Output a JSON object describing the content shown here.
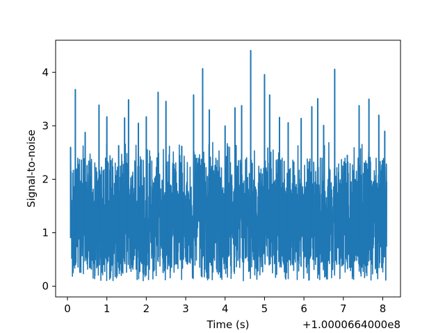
{
  "chart_data": {
    "type": "line",
    "title": "",
    "xlabel": "Time (s)",
    "ylabel": "Signal-to-noise",
    "x_offset_text": "+1.0000664000e8",
    "xlim": [
      -0.3,
      8.45
    ],
    "ylim": [
      -0.2,
      4.6
    ],
    "xticks": [
      0,
      1,
      2,
      3,
      4,
      5,
      6,
      7,
      8
    ],
    "yticks": [
      0,
      1,
      2,
      3,
      4
    ],
    "grid": false,
    "legend": "none",
    "line_color": "#1f77b4",
    "series": [
      {
        "values_note_removed": true,
        "x_range": [
          0.08,
          8.1
        ],
        "y_min": 0.02,
        "y_max": 4.41,
        "peaks": [
          {
            "x": 0.08,
            "y": 2.6
          },
          {
            "x": 0.2,
            "y": 3.68
          },
          {
            "x": 0.45,
            "y": 2.88
          },
          {
            "x": 0.8,
            "y": 3.39
          },
          {
            "x": 1.0,
            "y": 3.17
          },
          {
            "x": 1.3,
            "y": 2.63
          },
          {
            "x": 1.45,
            "y": 3.15
          },
          {
            "x": 1.55,
            "y": 3.49
          },
          {
            "x": 1.8,
            "y": 3.05
          },
          {
            "x": 2.0,
            "y": 3.17
          },
          {
            "x": 2.3,
            "y": 3.63
          },
          {
            "x": 2.5,
            "y": 3.46
          },
          {
            "x": 2.9,
            "y": 2.62
          },
          {
            "x": 3.2,
            "y": 3.58
          },
          {
            "x": 3.43,
            "y": 4.07
          },
          {
            "x": 3.6,
            "y": 3.3
          },
          {
            "x": 4.0,
            "y": 3.0
          },
          {
            "x": 4.25,
            "y": 3.34
          },
          {
            "x": 4.42,
            "y": 3.38
          },
          {
            "x": 4.65,
            "y": 4.41
          },
          {
            "x": 5.0,
            "y": 3.96
          },
          {
            "x": 5.13,
            "y": 3.58
          },
          {
            "x": 5.38,
            "y": 3.16
          },
          {
            "x": 5.6,
            "y": 3.06
          },
          {
            "x": 5.93,
            "y": 3.14
          },
          {
            "x": 6.2,
            "y": 3.36
          },
          {
            "x": 6.35,
            "y": 3.51
          },
          {
            "x": 6.5,
            "y": 3.01
          },
          {
            "x": 6.78,
            "y": 4.06
          },
          {
            "x": 7.1,
            "y": 2.45
          },
          {
            "x": 7.4,
            "y": 3.38
          },
          {
            "x": 7.65,
            "y": 3.5
          },
          {
            "x": 7.9,
            "y": 3.2
          },
          {
            "x": 8.05,
            "y": 2.9
          }
        ]
      }
    ]
  }
}
